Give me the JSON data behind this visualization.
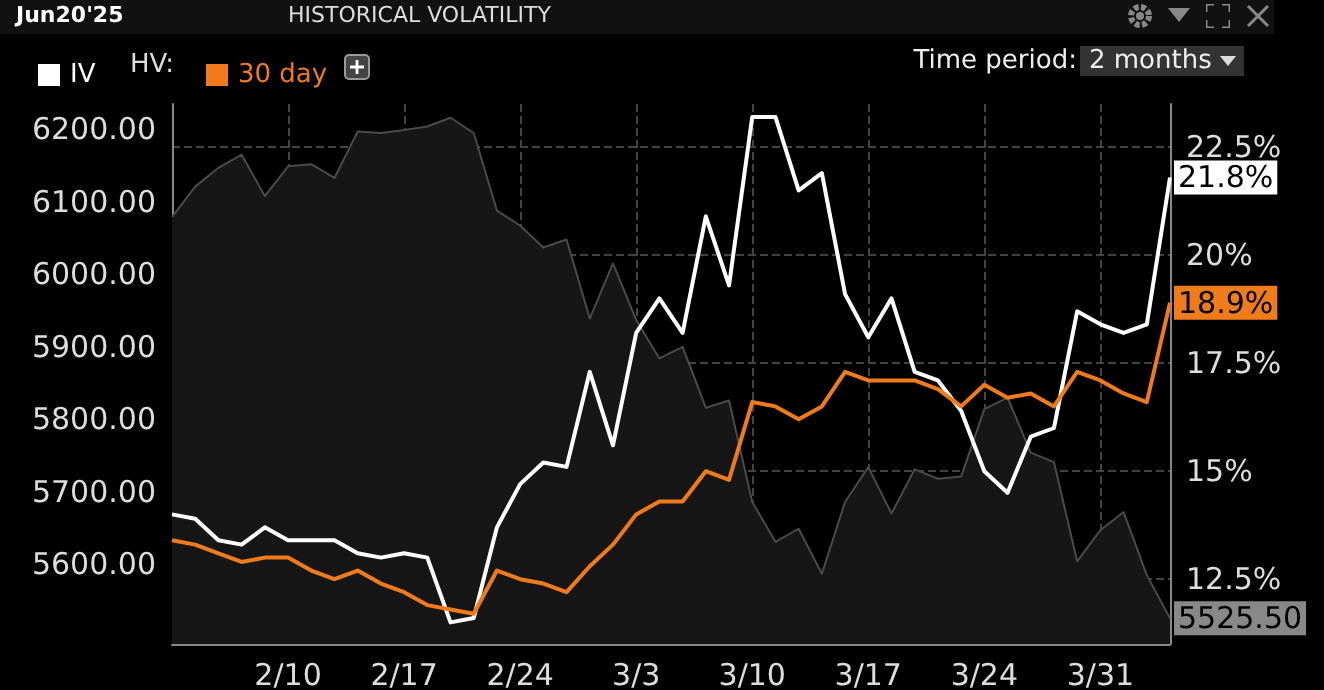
{
  "chart_data": {
    "type": "line",
    "title": "HISTORICAL VOLATILITY",
    "subtitle": "Jun20'25",
    "categories": [
      null,
      null,
      null,
      null,
      null,
      "2/10",
      null,
      null,
      null,
      null,
      "2/17",
      null,
      null,
      null,
      null,
      "2/24",
      null,
      null,
      null,
      null,
      "3/3",
      null,
      null,
      null,
      null,
      "3/10",
      null,
      null,
      null,
      null,
      "3/17",
      null,
      null,
      null,
      null,
      "3/24",
      null,
      null,
      null,
      null,
      "3/31",
      null,
      null,
      null
    ],
    "series": [
      {
        "type": "area",
        "color": "#4a4a4a",
        "values": [
          6079,
          6121,
          6147,
          6165,
          6108,
          6149,
          6152,
          6133,
          6197,
          6195,
          6199,
          6204,
          6216,
          6195,
          6088,
          6067,
          6037,
          6048,
          5939,
          6015,
          5937,
          5884,
          5900,
          5816,
          5826,
          5686,
          5631,
          5649,
          5587,
          5686,
          5734,
          5670,
          5731,
          5718,
          5721,
          5814,
          5830,
          5754,
          5741,
          5604,
          5647,
          5672,
          5585,
          5525.5
        ],
        "value_labels": [
          null,
          null,
          null,
          null,
          null,
          null,
          null,
          null,
          null,
          null,
          null,
          null,
          null,
          null,
          null,
          null,
          null,
          null,
          null,
          null,
          null,
          null,
          null,
          null,
          null,
          null,
          null,
          null,
          null,
          null,
          null,
          null,
          null,
          null,
          null,
          null,
          null,
          null,
          null,
          null,
          null,
          null,
          null,
          "5525.50"
        ]
      },
      {
        "name": "IV",
        "axis": "y2",
        "color": "#ffffff",
        "values": [
          14.0,
          13.9,
          13.4,
          13.3,
          13.7,
          13.4,
          13.4,
          13.4,
          13.1,
          13.0,
          13.1,
          13.0,
          11.5,
          11.6,
          13.7,
          14.7,
          15.2,
          15.1,
          17.3,
          15.6,
          18.2,
          19.0,
          18.2,
          20.9,
          19.3,
          23.2,
          23.2,
          21.5,
          21.9,
          19.1,
          18.1,
          19.0,
          17.3,
          17.1,
          16.4,
          15.0,
          14.5,
          15.8,
          16.0,
          18.7,
          18.4,
          18.2,
          18.4,
          21.8
        ],
        "value_labels": [
          null,
          null,
          null,
          null,
          null,
          null,
          null,
          null,
          null,
          null,
          null,
          null,
          null,
          null,
          null,
          null,
          null,
          null,
          null,
          null,
          null,
          null,
          null,
          null,
          null,
          null,
          null,
          null,
          null,
          null,
          null,
          null,
          null,
          null,
          null,
          null,
          null,
          null,
          null,
          null,
          null,
          null,
          null,
          "21.8%"
        ]
      },
      {
        "name": "30 day",
        "axis": "y2",
        "color": "#f07b1a",
        "values": [
          13.4,
          13.3,
          13.1,
          12.9,
          13.0,
          13.0,
          12.7,
          12.5,
          12.7,
          12.4,
          12.2,
          11.9,
          11.8,
          11.7,
          12.7,
          12.5,
          12.4,
          12.2,
          12.8,
          13.3,
          14.0,
          14.3,
          14.3,
          15.0,
          14.8,
          16.6,
          16.5,
          16.2,
          16.5,
          17.3,
          17.1,
          17.1,
          17.1,
          16.9,
          16.5,
          17.0,
          16.7,
          16.8,
          16.5,
          17.3,
          17.1,
          16.8,
          16.6,
          18.9
        ],
        "value_labels": [
          null,
          null,
          null,
          null,
          null,
          null,
          null,
          null,
          null,
          null,
          null,
          null,
          null,
          null,
          null,
          null,
          null,
          null,
          null,
          null,
          null,
          null,
          null,
          null,
          null,
          null,
          null,
          null,
          null,
          null,
          null,
          null,
          null,
          null,
          null,
          null,
          null,
          null,
          null,
          null,
          null,
          null,
          null,
          "18.9%"
        ]
      }
    ],
    "ylim": [
      5490,
      6235
    ],
    "yticks": [
      {
        "value": 5600,
        "label": "5600.00"
      },
      {
        "value": 5700,
        "label": "5700.00"
      },
      {
        "value": 5800,
        "label": "5800.00"
      },
      {
        "value": 5900,
        "label": "5900.00"
      },
      {
        "value": 6000,
        "label": "6000.00"
      },
      {
        "value": 6100,
        "label": "6100.00"
      },
      {
        "value": 6200,
        "label": "6200.00"
      }
    ],
    "y2lim": [
      11,
      23.5
    ],
    "y2ticks": [
      {
        "value": 12.5,
        "label": "12.5%"
      },
      {
        "value": 15,
        "label": "15%"
      },
      {
        "value": 17.5,
        "label": "17.5%"
      },
      {
        "value": 20,
        "label": "20%"
      },
      {
        "value": 22.5,
        "label": "22.5%"
      }
    ],
    "legend": "top left",
    "legend_title": "HV:",
    "annotations": [
      "Time period:",
      "2 months"
    ],
    "grid": true,
    "marker": "none",
    "line_style": "solid"
  }
}
